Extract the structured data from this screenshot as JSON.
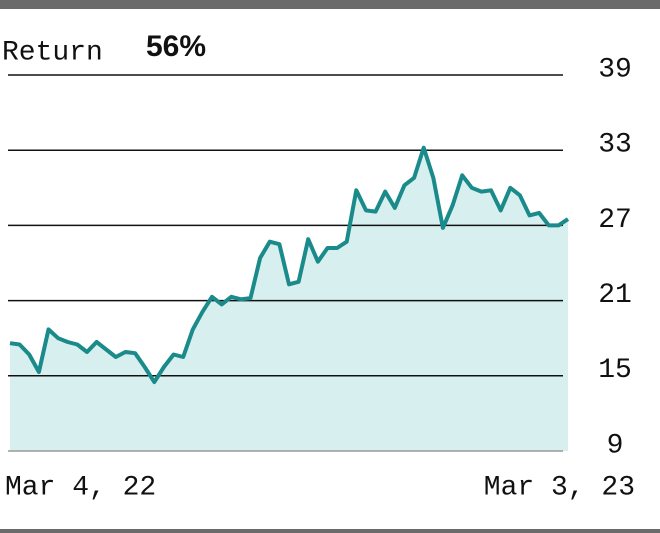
{
  "chart_data": {
    "type": "area",
    "title": "Return",
    "annotation": "56%",
    "categories": [
      "Mar 4, 22",
      null,
      null,
      null,
      null,
      null,
      null,
      null,
      null,
      null,
      null,
      null,
      null,
      null,
      null,
      null,
      null,
      null,
      null,
      null,
      null,
      null,
      null,
      null,
      null,
      null,
      null,
      null,
      null,
      null,
      null,
      null,
      null,
      null,
      null,
      null,
      null,
      null,
      null,
      null,
      null,
      null,
      null,
      null,
      null,
      null,
      null,
      null,
      null,
      null,
      null,
      null,
      null,
      null,
      null,
      null,
      null,
      null,
      "Mar 3, 23"
    ],
    "values": [
      17.6,
      17.5,
      16.7,
      15.3,
      18.7,
      18.0,
      17.7,
      17.5,
      16.9,
      17.7,
      17.1,
      16.5,
      16.9,
      16.8,
      15.7,
      14.5,
      15.7,
      16.7,
      16.5,
      18.7,
      20.1,
      21.3,
      20.7,
      21.3,
      21.1,
      21.2,
      24.4,
      25.7,
      25.5,
      22.3,
      22.5,
      25.9,
      24.1,
      25.2,
      25.2,
      25.7,
      29.8,
      28.2,
      28.1,
      29.7,
      28.4,
      30.2,
      30.8,
      33.2,
      30.8,
      26.8,
      28.6,
      31.0,
      30.0,
      29.7,
      29.8,
      28.2,
      30.0,
      29.4,
      27.8,
      28.0,
      27.0,
      27.0,
      27.5
    ],
    "color": "#1a8a8a",
    "fill": "#d8efef",
    "ylim": [
      9,
      39
    ],
    "yticks": [
      9,
      15,
      21,
      27,
      33,
      39
    ],
    "grid": true
  }
}
